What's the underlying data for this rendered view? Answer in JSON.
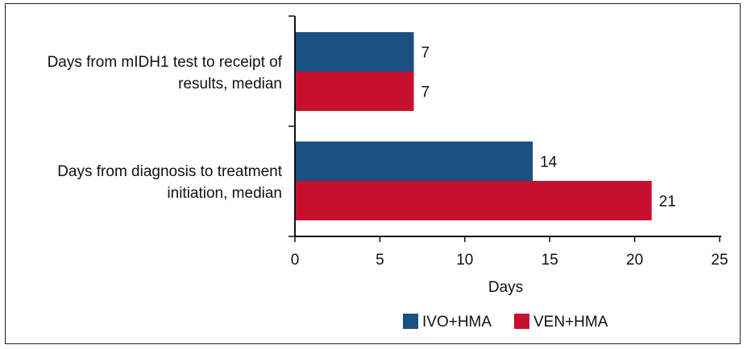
{
  "chart_data": {
    "type": "bar",
    "orientation": "horizontal",
    "categories": [
      [
        "Days from mIDH1 test to receipt of",
        "results, median"
      ],
      [
        "Days from diagnosis to treatment",
        "initiation, median"
      ]
    ],
    "series": [
      {
        "name": "IVO+HMA",
        "color": "#1a5082",
        "values": [
          7,
          14
        ]
      },
      {
        "name": "VEN+HMA",
        "color": "#c8102e",
        "values": [
          7,
          21
        ]
      }
    ],
    "xlabel": "Days",
    "xlim": [
      0,
      25
    ],
    "xticks": [
      0,
      5,
      10,
      15,
      20,
      25
    ],
    "grid": false,
    "legend_position": "bottom-center"
  }
}
